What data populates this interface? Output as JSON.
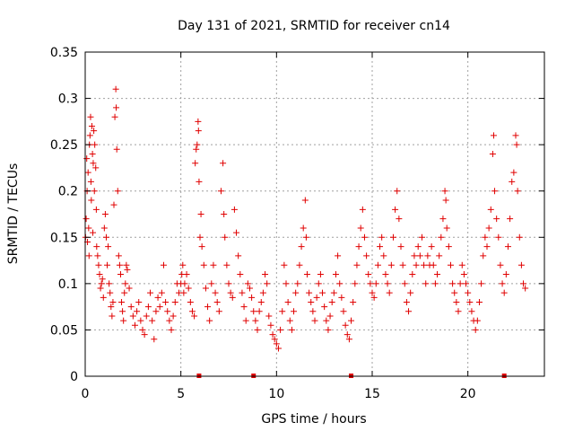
{
  "chart_data": {
    "type": "scatter",
    "title": "Day 131 of 2021, SRMTID for receiver cn14",
    "xlabel": "GPS time / hours",
    "ylabel": "SRMTID / TECUs",
    "xlim": [
      0,
      24
    ],
    "ylim": [
      0,
      0.35
    ],
    "xticks": [
      0,
      5,
      10,
      15,
      20
    ],
    "xtick_labels": [
      "0",
      "5",
      "10",
      "15",
      "20"
    ],
    "yticks": [
      0,
      0.05,
      0.1,
      0.15,
      0.2,
      0.25,
      0.3,
      0.35
    ],
    "ytick_labels": [
      "0",
      "0.05",
      "0.1",
      "0.15",
      "0.2",
      "0.25",
      "0.3",
      "0.35"
    ],
    "grid": true,
    "marker": "plus",
    "color": "#e00000",
    "gap_markers_x": [
      5.95,
      8.8,
      13.9,
      21.9
    ],
    "series": [
      {
        "name": "SRMTID",
        "points": [
          [
            0.02,
            0.15
          ],
          [
            0.05,
            0.17
          ],
          [
            0.08,
            0.235
          ],
          [
            0.1,
            0.2
          ],
          [
            0.12,
            0.145
          ],
          [
            0.15,
            0.22
          ],
          [
            0.18,
            0.16
          ],
          [
            0.2,
            0.13
          ],
          [
            0.22,
            0.25
          ],
          [
            0.25,
            0.26
          ],
          [
            0.28,
            0.28
          ],
          [
            0.3,
            0.21
          ],
          [
            0.32,
            0.19
          ],
          [
            0.35,
            0.27
          ],
          [
            0.38,
            0.24
          ],
          [
            0.4,
            0.155
          ],
          [
            0.42,
            0.23
          ],
          [
            0.45,
            0.265
          ],
          [
            0.48,
            0.2
          ],
          [
            0.5,
            0.25
          ],
          [
            0.55,
            0.225
          ],
          [
            0.58,
            0.18
          ],
          [
            0.6,
            0.14
          ],
          [
            0.65,
            0.13
          ],
          [
            0.7,
            0.12
          ],
          [
            0.75,
            0.11
          ],
          [
            0.8,
            0.095
          ],
          [
            0.85,
            0.1
          ],
          [
            0.9,
            0.105
          ],
          [
            0.95,
            0.085
          ],
          [
            1.0,
            0.16
          ],
          [
            1.05,
            0.175
          ],
          [
            1.1,
            0.15
          ],
          [
            1.15,
            0.12
          ],
          [
            1.2,
            0.14
          ],
          [
            1.25,
            0.1
          ],
          [
            1.3,
            0.09
          ],
          [
            1.35,
            0.075
          ],
          [
            1.4,
            0.065
          ],
          [
            1.45,
            0.08
          ],
          [
            1.5,
            0.185
          ],
          [
            1.55,
            0.28
          ],
          [
            1.6,
            0.31
          ],
          [
            1.62,
            0.29
          ],
          [
            1.65,
            0.245
          ],
          [
            1.7,
            0.2
          ],
          [
            1.75,
            0.13
          ],
          [
            1.8,
            0.12
          ],
          [
            1.85,
            0.11
          ],
          [
            1.9,
            0.08
          ],
          [
            1.95,
            0.07
          ],
          [
            2.0,
            0.06
          ],
          [
            2.05,
            0.09
          ],
          [
            2.1,
            0.1
          ],
          [
            2.15,
            0.12
          ],
          [
            2.2,
            0.115
          ],
          [
            2.3,
            0.095
          ],
          [
            2.4,
            0.075
          ],
          [
            2.5,
            0.065
          ],
          [
            2.6,
            0.055
          ],
          [
            2.7,
            0.07
          ],
          [
            2.8,
            0.08
          ],
          [
            2.9,
            0.06
          ],
          [
            3.0,
            0.05
          ],
          [
            3.1,
            0.045
          ],
          [
            3.2,
            0.065
          ],
          [
            3.3,
            0.075
          ],
          [
            3.4,
            0.09
          ],
          [
            3.5,
            0.06
          ],
          [
            3.6,
            0.04
          ],
          [
            3.7,
            0.07
          ],
          [
            3.8,
            0.085
          ],
          [
            3.9,
            0.075
          ],
          [
            4.0,
            0.09
          ],
          [
            4.1,
            0.12
          ],
          [
            4.2,
            0.08
          ],
          [
            4.3,
            0.07
          ],
          [
            4.4,
            0.06
          ],
          [
            4.5,
            0.05
          ],
          [
            4.6,
            0.065
          ],
          [
            4.7,
            0.08
          ],
          [
            4.8,
            0.1
          ],
          [
            4.9,
            0.09
          ],
          [
            5.0,
            0.1
          ],
          [
            5.05,
            0.11
          ],
          [
            5.1,
            0.12
          ],
          [
            5.15,
            0.09
          ],
          [
            5.2,
            0.1
          ],
          [
            5.3,
            0.11
          ],
          [
            5.4,
            0.095
          ],
          [
            5.5,
            0.08
          ],
          [
            5.6,
            0.07
          ],
          [
            5.7,
            0.065
          ],
          [
            5.75,
            0.23
          ],
          [
            5.8,
            0.245
          ],
          [
            5.85,
            0.25
          ],
          [
            5.9,
            0.275
          ],
          [
            5.92,
            0.265
          ],
          [
            5.95,
            0.21
          ],
          [
            6.0,
            0.15
          ],
          [
            6.05,
            0.175
          ],
          [
            6.1,
            0.14
          ],
          [
            6.2,
            0.12
          ],
          [
            6.3,
            0.095
          ],
          [
            6.4,
            0.075
          ],
          [
            6.5,
            0.06
          ],
          [
            6.6,
            0.1
          ],
          [
            6.7,
            0.12
          ],
          [
            6.8,
            0.09
          ],
          [
            6.9,
            0.08
          ],
          [
            7.0,
            0.07
          ],
          [
            7.1,
            0.2
          ],
          [
            7.2,
            0.23
          ],
          [
            7.25,
            0.175
          ],
          [
            7.3,
            0.15
          ],
          [
            7.4,
            0.12
          ],
          [
            7.5,
            0.1
          ],
          [
            7.6,
            0.09
          ],
          [
            7.7,
            0.085
          ],
          [
            7.8,
            0.18
          ],
          [
            7.9,
            0.155
          ],
          [
            8.0,
            0.13
          ],
          [
            8.1,
            0.11
          ],
          [
            8.2,
            0.09
          ],
          [
            8.3,
            0.075
          ],
          [
            8.4,
            0.06
          ],
          [
            8.5,
            0.1
          ],
          [
            8.6,
            0.095
          ],
          [
            8.7,
            0.085
          ],
          [
            8.8,
            0.07
          ],
          [
            8.9,
            0.06
          ],
          [
            9.0,
            0.05
          ],
          [
            9.1,
            0.07
          ],
          [
            9.2,
            0.08
          ],
          [
            9.3,
            0.09
          ],
          [
            9.4,
            0.11
          ],
          [
            9.5,
            0.1
          ],
          [
            9.6,
            0.065
          ],
          [
            9.7,
            0.055
          ],
          [
            9.8,
            0.045
          ],
          [
            9.9,
            0.04
          ],
          [
            10.0,
            0.035
          ],
          [
            10.1,
            0.03
          ],
          [
            10.2,
            0.05
          ],
          [
            10.3,
            0.07
          ],
          [
            10.4,
            0.12
          ],
          [
            10.5,
            0.1
          ],
          [
            10.6,
            0.08
          ],
          [
            10.7,
            0.06
          ],
          [
            10.8,
            0.05
          ],
          [
            10.9,
            0.07
          ],
          [
            11.0,
            0.09
          ],
          [
            11.1,
            0.1
          ],
          [
            11.2,
            0.12
          ],
          [
            11.3,
            0.14
          ],
          [
            11.4,
            0.16
          ],
          [
            11.5,
            0.19
          ],
          [
            11.55,
            0.15
          ],
          [
            11.6,
            0.11
          ],
          [
            11.7,
            0.09
          ],
          [
            11.8,
            0.08
          ],
          [
            11.9,
            0.07
          ],
          [
            12.0,
            0.06
          ],
          [
            12.1,
            0.085
          ],
          [
            12.2,
            0.1
          ],
          [
            12.3,
            0.11
          ],
          [
            12.4,
            0.09
          ],
          [
            12.5,
            0.075
          ],
          [
            12.6,
            0.06
          ],
          [
            12.7,
            0.05
          ],
          [
            12.8,
            0.065
          ],
          [
            12.9,
            0.08
          ],
          [
            13.0,
            0.09
          ],
          [
            13.1,
            0.11
          ],
          [
            13.2,
            0.13
          ],
          [
            13.3,
            0.1
          ],
          [
            13.4,
            0.085
          ],
          [
            13.5,
            0.07
          ],
          [
            13.6,
            0.055
          ],
          [
            13.7,
            0.045
          ],
          [
            13.8,
            0.04
          ],
          [
            13.9,
            0.06
          ],
          [
            14.0,
            0.08
          ],
          [
            14.1,
            0.1
          ],
          [
            14.2,
            0.12
          ],
          [
            14.3,
            0.14
          ],
          [
            14.4,
            0.16
          ],
          [
            14.5,
            0.18
          ],
          [
            14.6,
            0.15
          ],
          [
            14.7,
            0.13
          ],
          [
            14.8,
            0.11
          ],
          [
            14.9,
            0.1
          ],
          [
            15.0,
            0.09
          ],
          [
            15.1,
            0.085
          ],
          [
            15.2,
            0.1
          ],
          [
            15.3,
            0.12
          ],
          [
            15.4,
            0.14
          ],
          [
            15.5,
            0.15
          ],
          [
            15.6,
            0.13
          ],
          [
            15.7,
            0.11
          ],
          [
            15.8,
            0.1
          ],
          [
            15.9,
            0.09
          ],
          [
            16.0,
            0.12
          ],
          [
            16.1,
            0.15
          ],
          [
            16.2,
            0.18
          ],
          [
            16.3,
            0.2
          ],
          [
            16.4,
            0.17
          ],
          [
            16.5,
            0.14
          ],
          [
            16.6,
            0.12
          ],
          [
            16.7,
            0.1
          ],
          [
            16.8,
            0.08
          ],
          [
            16.9,
            0.07
          ],
          [
            17.0,
            0.09
          ],
          [
            17.1,
            0.11
          ],
          [
            17.2,
            0.13
          ],
          [
            17.3,
            0.12
          ],
          [
            17.4,
            0.14
          ],
          [
            17.5,
            0.13
          ],
          [
            17.6,
            0.15
          ],
          [
            17.7,
            0.12
          ],
          [
            17.8,
            0.1
          ],
          [
            17.9,
            0.13
          ],
          [
            18.0,
            0.12
          ],
          [
            18.1,
            0.14
          ],
          [
            18.2,
            0.12
          ],
          [
            18.3,
            0.1
          ],
          [
            18.4,
            0.11
          ],
          [
            18.5,
            0.13
          ],
          [
            18.6,
            0.15
          ],
          [
            18.7,
            0.17
          ],
          [
            18.8,
            0.2
          ],
          [
            18.85,
            0.19
          ],
          [
            18.9,
            0.16
          ],
          [
            19.0,
            0.14
          ],
          [
            19.1,
            0.12
          ],
          [
            19.2,
            0.1
          ],
          [
            19.3,
            0.09
          ],
          [
            19.4,
            0.08
          ],
          [
            19.5,
            0.07
          ],
          [
            19.6,
            0.1
          ],
          [
            19.7,
            0.12
          ],
          [
            19.8,
            0.11
          ],
          [
            19.9,
            0.1
          ],
          [
            20.0,
            0.09
          ],
          [
            20.1,
            0.08
          ],
          [
            20.2,
            0.07
          ],
          [
            20.3,
            0.06
          ],
          [
            20.4,
            0.05
          ],
          [
            20.5,
            0.06
          ],
          [
            20.6,
            0.08
          ],
          [
            20.7,
            0.1
          ],
          [
            20.8,
            0.13
          ],
          [
            20.9,
            0.15
          ],
          [
            21.0,
            0.14
          ],
          [
            21.1,
            0.16
          ],
          [
            21.2,
            0.18
          ],
          [
            21.3,
            0.24
          ],
          [
            21.35,
            0.26
          ],
          [
            21.4,
            0.2
          ],
          [
            21.5,
            0.17
          ],
          [
            21.6,
            0.15
          ],
          [
            21.7,
            0.12
          ],
          [
            21.8,
            0.1
          ],
          [
            21.9,
            0.09
          ],
          [
            22.0,
            0.11
          ],
          [
            22.1,
            0.14
          ],
          [
            22.2,
            0.17
          ],
          [
            22.3,
            0.21
          ],
          [
            22.4,
            0.22
          ],
          [
            22.5,
            0.26
          ],
          [
            22.55,
            0.25
          ],
          [
            22.6,
            0.2
          ],
          [
            22.7,
            0.15
          ],
          [
            22.8,
            0.12
          ],
          [
            22.9,
            0.1
          ],
          [
            23.0,
            0.095
          ]
        ]
      }
    ]
  }
}
